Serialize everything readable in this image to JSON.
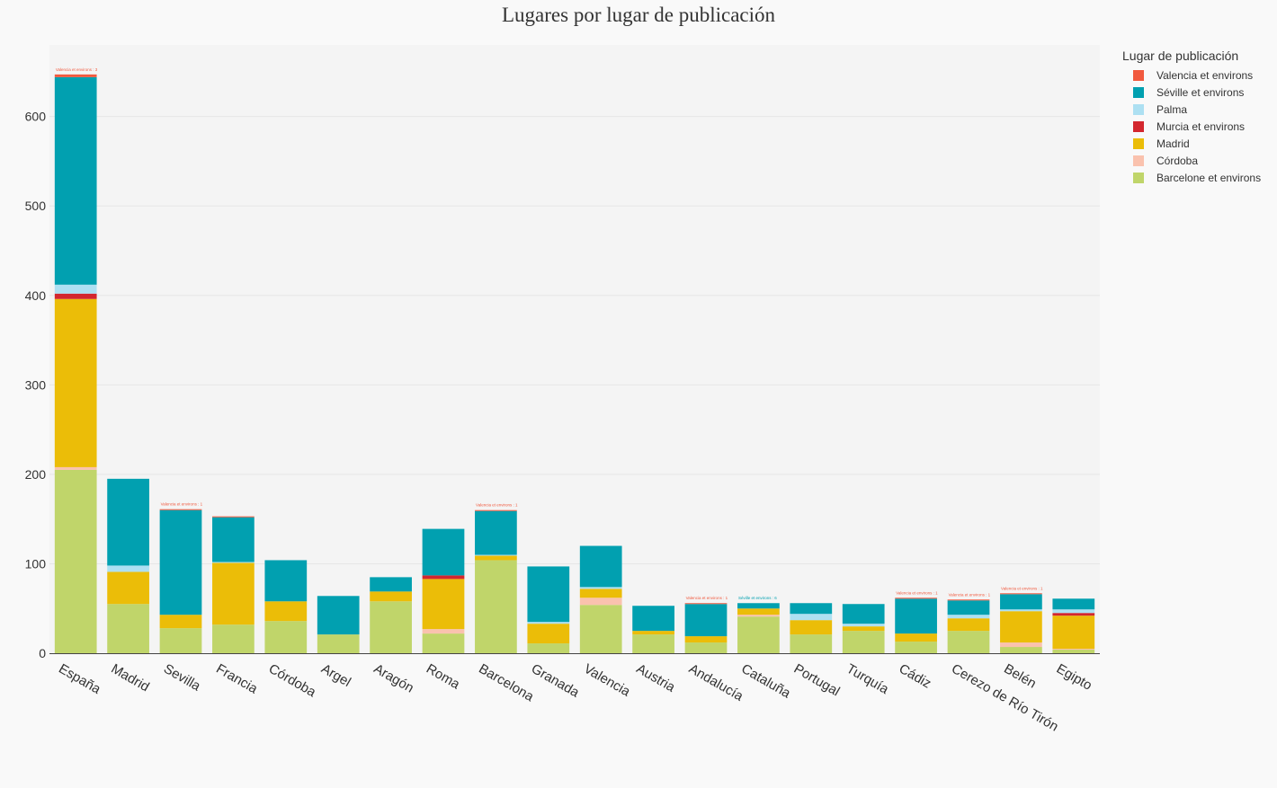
{
  "chart_data": {
    "type": "bar",
    "stacked": true,
    "title": "Lugares por lugar de publicación",
    "xlabel": "",
    "ylabel": "",
    "ylim": [
      0,
      680
    ],
    "yticks": [
      0,
      100,
      200,
      300,
      400,
      500,
      600
    ],
    "grid": true,
    "legend_title": "Lugar de publicación",
    "legend_position": "right",
    "categories": [
      "España",
      "Madrid",
      "Sevilla",
      "Francia",
      "Córdoba",
      "Argel",
      "Aragón",
      "Roma",
      "Barcelona",
      "Granada",
      "Valencia",
      "Austria",
      "Andalucía",
      "Cataluña",
      "Portugal",
      "Turquía",
      "Cádiz",
      "Cerezo de Río Tirón",
      "Belén",
      "Egipto"
    ],
    "series": [
      {
        "name": "Barcelone et environs",
        "color": "#c0d56a",
        "values": [
          205,
          55,
          28,
          32,
          36,
          21,
          58,
          22,
          104,
          11,
          54,
          21,
          12,
          41,
          21,
          25,
          13,
          25,
          7,
          4
        ]
      },
      {
        "name": "Córdoba",
        "color": "#fac2ae",
        "values": [
          3,
          0,
          0,
          0,
          0,
          0,
          0,
          5,
          0,
          0,
          8,
          0,
          0,
          2,
          0,
          0,
          0,
          0,
          5,
          1
        ]
      },
      {
        "name": "Madrid",
        "color": "#ebbd08",
        "values": [
          188,
          36,
          15,
          69,
          22,
          0,
          11,
          56,
          5,
          22,
          10,
          4,
          7,
          7,
          16,
          5,
          9,
          14,
          35,
          37
        ]
      },
      {
        "name": "Murcia et environs",
        "color": "#d3272e",
        "values": [
          6,
          0,
          0,
          0,
          0,
          0,
          0,
          4,
          0,
          0,
          0,
          0,
          0,
          0,
          0,
          0,
          0,
          0,
          0,
          3
        ]
      },
      {
        "name": "Palma",
        "color": "#ade0f2",
        "values": [
          10,
          7,
          0,
          1,
          0,
          0,
          0,
          0,
          1,
          2,
          2,
          0,
          0,
          0,
          7,
          3,
          0,
          4,
          2,
          4
        ]
      },
      {
        "name": "Séville et environs",
        "color": "#01a0b0",
        "values": [
          232,
          97,
          117,
          50,
          46,
          43,
          16,
          52,
          49,
          62,
          46,
          28,
          36,
          6,
          12,
          22,
          39,
          16,
          17,
          12
        ]
      },
      {
        "name": "Valencia et environs",
        "color": "#f1593e",
        "values": [
          3,
          0,
          1,
          1,
          0,
          0,
          0,
          0,
          1,
          0,
          0,
          0,
          1,
          0,
          0,
          0,
          1,
          1,
          1,
          0
        ]
      }
    ],
    "annotations": [
      {
        "category": "España",
        "text": "Valencia et environs : 3",
        "color": "#f1593e"
      },
      {
        "category": "Sevilla",
        "text": "Valencia et environs : 1",
        "color": "#f1593e"
      },
      {
        "category": "Barcelona",
        "text": "Valencia et environs : 1",
        "color": "#f1593e"
      },
      {
        "category": "Andalucía",
        "text": "Valencia et environs : 1",
        "color": "#f1593e"
      },
      {
        "category": "Cataluña",
        "text": "Séville et environs : 6",
        "color": "#01a0b0"
      },
      {
        "category": "Cádiz",
        "text": "Valencia et environs : 1",
        "color": "#f1593e"
      },
      {
        "category": "Cerezo de Río Tirón",
        "text": "Valencia et environs : 1",
        "color": "#f1593e"
      },
      {
        "category": "Belén",
        "text": "Valencia et environs : 1",
        "color": "#f1593e"
      }
    ],
    "legend_order": [
      "Valencia et environs",
      "Séville et environs",
      "Palma",
      "Murcia et environs",
      "Madrid",
      "Córdoba",
      "Barcelone et environs"
    ]
  }
}
